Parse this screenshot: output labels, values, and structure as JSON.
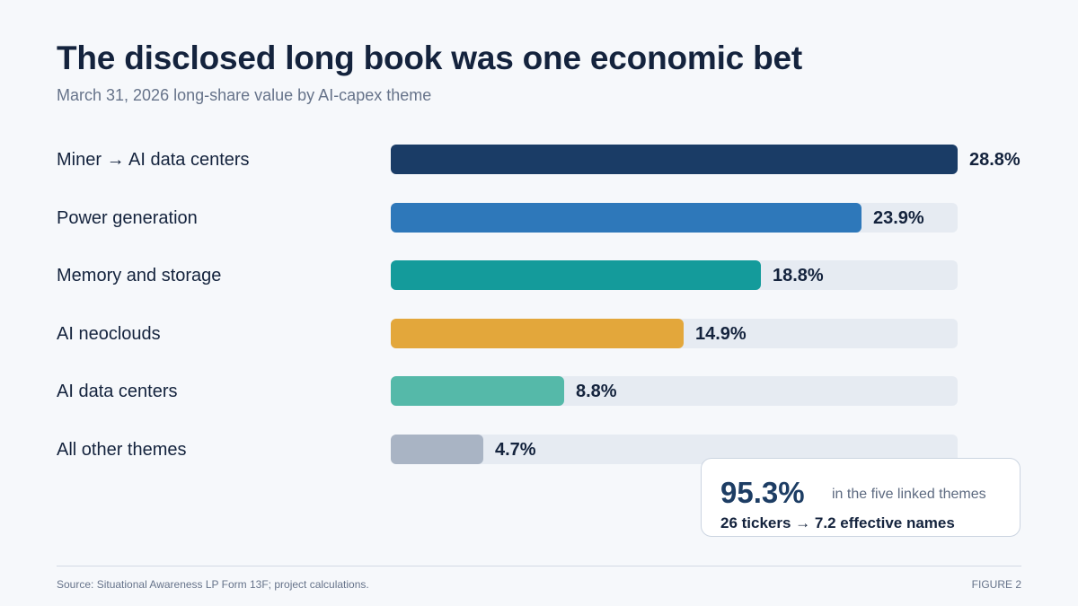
{
  "header": {
    "title": "The disclosed long book was one economic bet",
    "subtitle": "March 31, 2026 long-share value by AI-capex theme"
  },
  "chart_data": {
    "type": "bar",
    "orientation": "horizontal",
    "categories": [
      "Miner → AI data centers",
      "Power generation",
      "Memory and storage",
      "AI neoclouds",
      "AI data centers",
      "All other themes"
    ],
    "values": [
      28.8,
      23.9,
      18.8,
      14.9,
      8.8,
      4.7
    ],
    "value_labels": [
      "28.8%",
      "23.9%",
      "18.8%",
      "14.9%",
      "8.8%",
      "4.7%"
    ],
    "colors": [
      "#1a3c66",
      "#2e78ba",
      "#149b9b",
      "#e3a73b",
      "#55b9a9",
      "#a9b4c4"
    ],
    "track_color": "#e6ebf2",
    "xlim": [
      0,
      28.8
    ],
    "unit": "%",
    "grid": false
  },
  "callout": {
    "big_value": "95.3%",
    "caption": "in the five linked themes",
    "detail": "26 tickers → 7.2 effective names"
  },
  "footer": {
    "source": "Source: Situational Awareness LP Form 13F; project calculations.",
    "figure_label": "FIGURE 2"
  }
}
